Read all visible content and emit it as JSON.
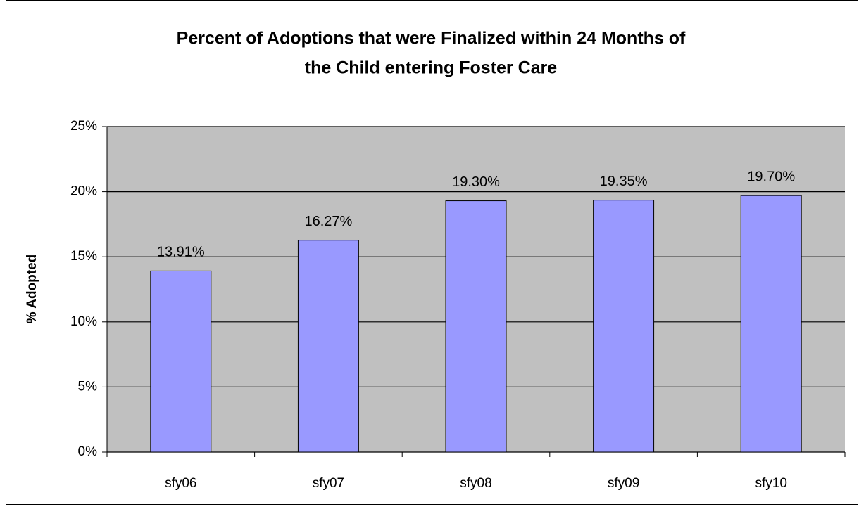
{
  "chart_data": {
    "type": "bar",
    "title": [
      "Percent of Adoptions that were Finalized within 24 Months of",
      "the Child entering Foster Care"
    ],
    "y_label": "% Adopted",
    "categories": [
      "sfy06",
      "sfy07",
      "sfy08",
      "sfy09",
      "sfy10"
    ],
    "values": [
      13.91,
      16.27,
      19.3,
      19.35,
      19.7
    ],
    "value_labels": [
      "13.91%",
      "16.27%",
      "19.30%",
      "19.35%",
      "19.70%"
    ],
    "color": "#9999ff",
    "ylim": [
      0,
      25
    ],
    "yticks": [
      {
        "value": 0,
        "label": "0%"
      },
      {
        "value": 5,
        "label": "5%"
      },
      {
        "value": 10,
        "label": "10%"
      },
      {
        "value": 15,
        "label": "15%"
      },
      {
        "value": 20,
        "label": "20%"
      },
      {
        "value": 25,
        "label": "25%"
      }
    ],
    "grid": true
  }
}
